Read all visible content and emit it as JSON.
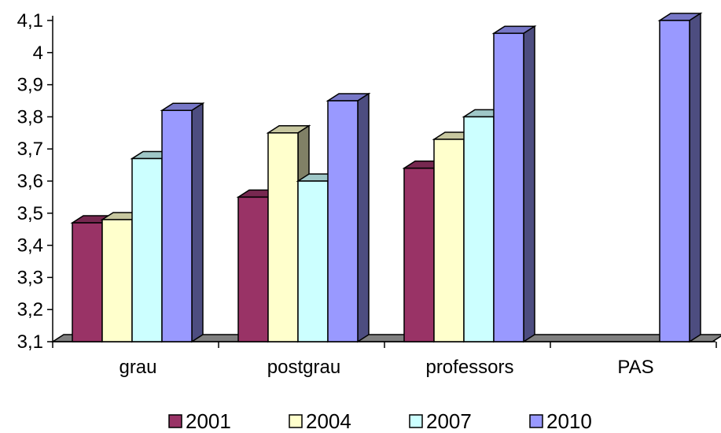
{
  "chart_data": {
    "type": "bar",
    "categories": [
      "grau",
      "postgrau",
      "professors",
      "PAS"
    ],
    "series": [
      {
        "name": "2001",
        "values": [
          3.47,
          3.55,
          3.64,
          null
        ],
        "color": "#993366"
      },
      {
        "name": "2004",
        "values": [
          3.48,
          3.75,
          3.73,
          null
        ],
        "color": "#FFFFCC"
      },
      {
        "name": "2007",
        "values": [
          3.67,
          3.6,
          3.8,
          null
        ],
        "color": "#CCFFFF"
      },
      {
        "name": "2010",
        "values": [
          3.82,
          3.85,
          4.06,
          4.1
        ],
        "color": "#9999FF"
      }
    ],
    "yticks": [
      "3,1",
      "3,2",
      "3,3",
      "3,4",
      "3,5",
      "3,6",
      "3,7",
      "3,8",
      "3,9",
      "4",
      "4,1"
    ],
    "ylim": [
      3.1,
      4.1
    ],
    "title": "",
    "xlabel": "",
    "ylabel": "",
    "legend_position": "bottom",
    "grid": false,
    "style": "3d-column"
  }
}
